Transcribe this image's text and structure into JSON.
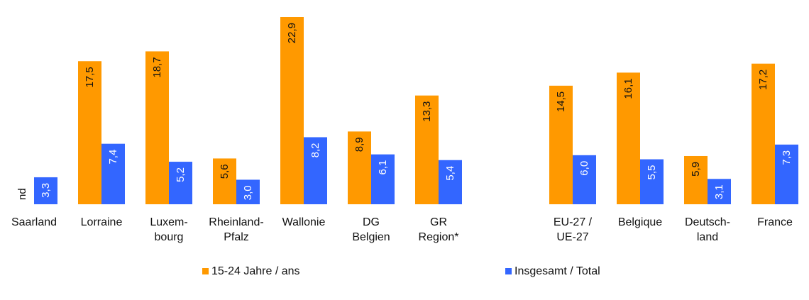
{
  "chart_data": {
    "type": "bar",
    "categories": [
      [
        "Saarland"
      ],
      [
        "Lorraine"
      ],
      [
        "Luxem-",
        "bourg"
      ],
      [
        "Rheinland-",
        "Pfalz"
      ],
      [
        "Wallonie"
      ],
      [
        "DG",
        "Belgien"
      ],
      [
        "GR",
        "Region*"
      ],
      [
        "EU-27 /",
        "UE-27"
      ],
      [
        "Belgique"
      ],
      [
        "Deutsch-",
        "land"
      ],
      [
        "France"
      ]
    ],
    "series": [
      {
        "name": "15-24 Jahre / ans",
        "color": "#FF9900",
        "values": [
          null,
          17.5,
          18.7,
          5.6,
          22.9,
          8.9,
          13.3,
          14.5,
          16.1,
          5.9,
          17.2
        ],
        "labels": [
          "nd",
          "17,5",
          "18,7",
          "5,6",
          "22,9",
          "8,9",
          "13,3",
          "14,5",
          "16,1",
          "5,9",
          "17,2"
        ]
      },
      {
        "name": "Insgesamt / Total",
        "color": "#3366FF",
        "values": [
          3.3,
          7.4,
          5.2,
          3.0,
          8.2,
          6.1,
          5.4,
          6.0,
          5.5,
          3.1,
          7.3
        ],
        "labels": [
          "3,3",
          "7,4",
          "5,2",
          "3,0",
          "8,2",
          "6,1",
          "5,4",
          "6,0",
          "5,5",
          "3,1",
          "7,3"
        ]
      }
    ],
    "ylim": [
      0,
      23.5
    ],
    "legend_position": "bottom",
    "grid": false
  }
}
